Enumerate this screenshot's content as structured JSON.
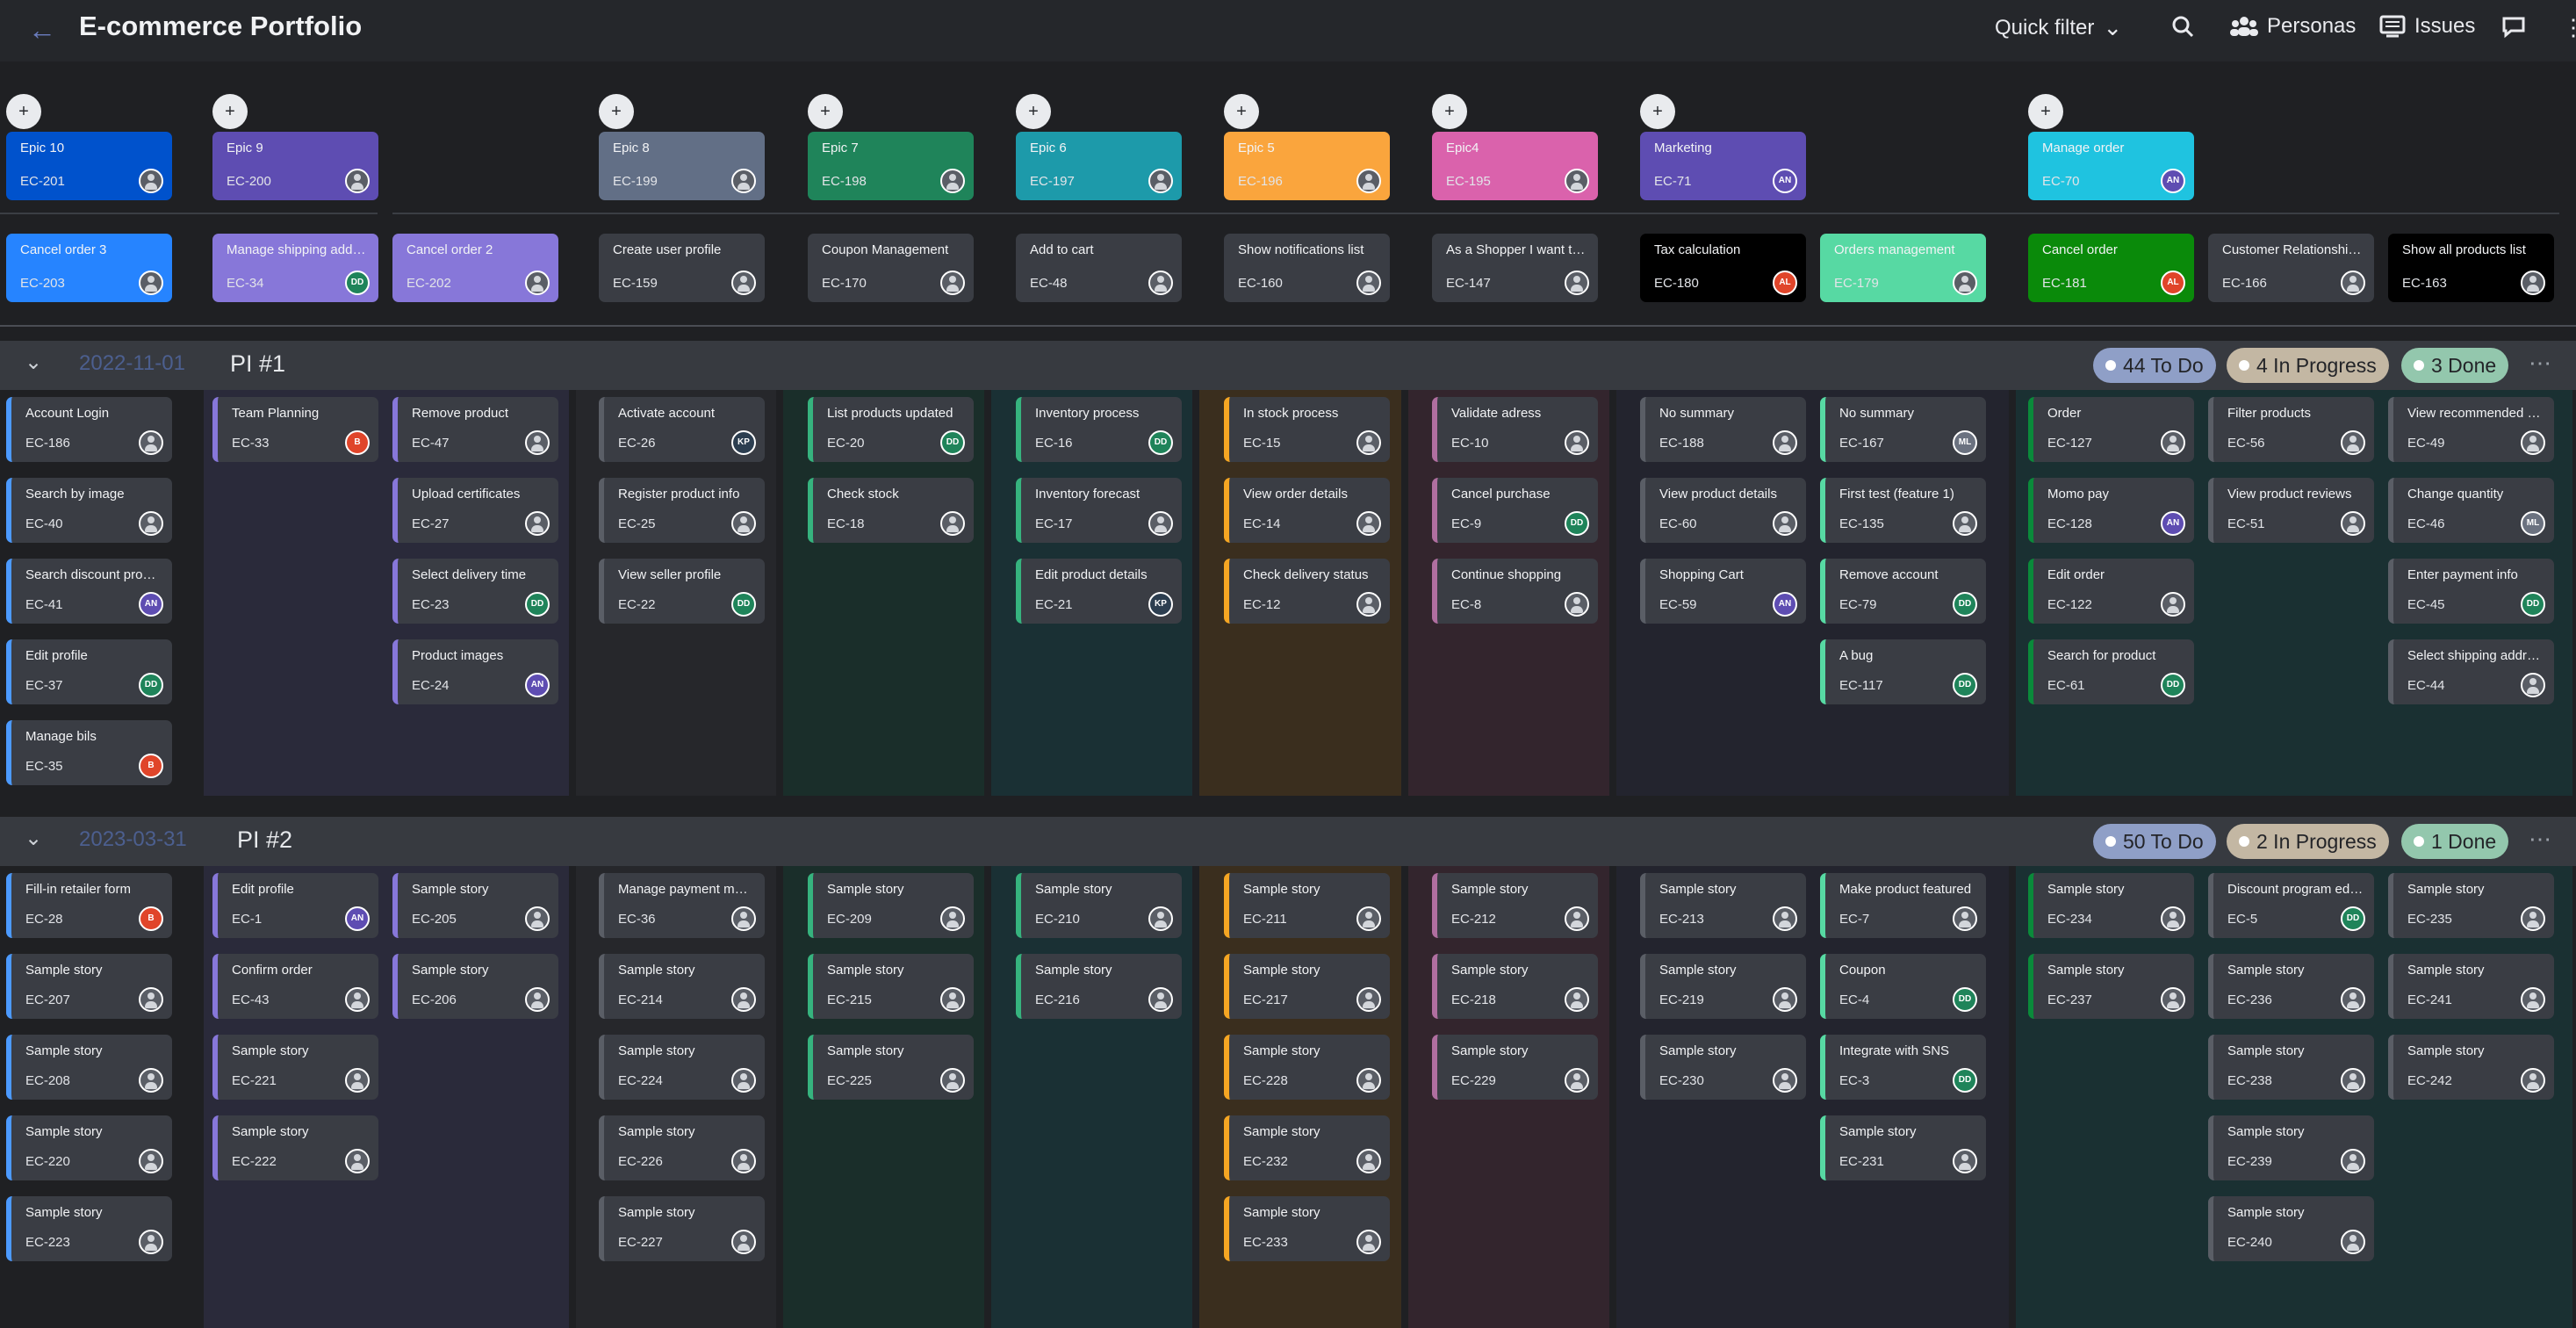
{
  "header": {
    "back_label": "←",
    "title": "E-commerce Portfolio",
    "quick_filter": "Quick filter",
    "personas": "Personas",
    "issues": "Issues"
  },
  "persona_icon": "+",
  "epics": [
    {
      "title": "Epic 10",
      "key": "EC-201",
      "color": "#0052cc"
    },
    {
      "title": "Epic 9",
      "key": "EC-200",
      "color": "#5e4db2"
    },
    {
      "title": "Epic 8",
      "key": "EC-199",
      "color": "#626f86"
    },
    {
      "title": "Epic 7",
      "key": "EC-198",
      "color": "#1f845a"
    },
    {
      "title": "Epic 6",
      "key": "EC-197",
      "color": "#1d9aaa"
    },
    {
      "title": "Epic 5",
      "key": "EC-196",
      "color": "#faa53d"
    },
    {
      "title": "Epic4",
      "key": "EC-195",
      "color": "#da62ac"
    },
    {
      "title": "Marketing",
      "key": "EC-71",
      "color": "#5e4db2",
      "avatar": "AN"
    },
    {
      "title": "Manage order",
      "key": "EC-70",
      "color": "#1fc3e0",
      "avatar": "AN"
    }
  ],
  "features": [
    {
      "title": "Cancel order 3",
      "key": "EC-203"
    },
    {
      "title": "Manage shipping addresses",
      "key": "EC-34",
      "avatar": "DD"
    },
    {
      "title": "Cancel order 2",
      "key": "EC-202"
    },
    {
      "title": "Create user profile",
      "key": "EC-159"
    },
    {
      "title": "Coupon Management",
      "key": "EC-170"
    },
    {
      "title": "Add to cart",
      "key": "EC-48"
    },
    {
      "title": "Show notifications list",
      "key": "EC-160"
    },
    {
      "title": "As a Shopper I want to Search for product",
      "key": "EC-147"
    },
    {
      "title": "Tax calculation",
      "key": "EC-180",
      "avatar": "AL"
    },
    {
      "title": "Orders management",
      "key": "EC-179"
    },
    {
      "title": "Cancel order",
      "key": "EC-181",
      "avatar": "AL"
    },
    {
      "title": "Customer Relationship management",
      "key": "EC-166"
    },
    {
      "title": "Show all products list",
      "key": "EC-163"
    }
  ],
  "pi1": {
    "date": "2022-11-01",
    "name": "PI #1",
    "todo": "44 To Do",
    "inprogress": "4 In Progress",
    "done": "3 Done",
    "stories": [
      {
        "title": "Account Login",
        "key": "EC-186"
      },
      {
        "title": "Search by image",
        "key": "EC-40"
      },
      {
        "title": "Search discount products",
        "key": "EC-41",
        "avatar": "AN"
      },
      {
        "title": "Edit profile",
        "key": "EC-37",
        "avatar": "DD"
      },
      {
        "title": "Manage bils",
        "key": "EC-35",
        "avatar": "B"
      },
      {
        "title": "Team Planning",
        "key": "EC-33",
        "avatar": "B"
      },
      {
        "title": "Remove product",
        "key": "EC-47"
      },
      {
        "title": "Upload certificates",
        "key": "EC-27"
      },
      {
        "title": "Select delivery time",
        "key": "EC-23",
        "avatar": "DD"
      },
      {
        "title": "Product images",
        "key": "EC-24",
        "avatar": "AN"
      },
      {
        "title": "Activate account",
        "key": "EC-26",
        "avatar": "KP"
      },
      {
        "title": "Register product info",
        "key": "EC-25"
      },
      {
        "title": "View seller profile",
        "key": "EC-22",
        "avatar": "DD"
      },
      {
        "title": "List products updated",
        "key": "EC-20",
        "avatar": "DD"
      },
      {
        "title": "Check stock",
        "key": "EC-18"
      },
      {
        "title": "Inventory process",
        "key": "EC-16",
        "avatar": "DD"
      },
      {
        "title": "Inventory forecast",
        "key": "EC-17"
      },
      {
        "title": "Edit product details",
        "key": "EC-21",
        "avatar": "KP"
      },
      {
        "title": "In stock process",
        "key": "EC-15"
      },
      {
        "title": "View order details",
        "key": "EC-14"
      },
      {
        "title": "Check delivery status",
        "key": "EC-12"
      },
      {
        "title": "Validate adress",
        "key": "EC-10"
      },
      {
        "title": "Cancel purchase",
        "key": "EC-9",
        "avatar": "DD"
      },
      {
        "title": "Continue shopping",
        "key": "EC-8"
      },
      {
        "title": "No summary",
        "key": "EC-188"
      },
      {
        "title": "View product details",
        "key": "EC-60"
      },
      {
        "title": "Shopping Cart",
        "key": "EC-59",
        "avatar": "AN"
      },
      {
        "title": "No summary",
        "key": "EC-167",
        "avatar": "ML"
      },
      {
        "title": "First test (feature 1)",
        "key": "EC-135"
      },
      {
        "title": "Remove account",
        "key": "EC-79",
        "avatar": "DD"
      },
      {
        "title": "A bug",
        "key": "EC-117",
        "avatar": "DD"
      },
      {
        "title": "Order",
        "key": "EC-127"
      },
      {
        "title": "Momo pay",
        "key": "EC-128",
        "avatar": "AN"
      },
      {
        "title": "Edit order",
        "key": "EC-122"
      },
      {
        "title": "Search for product",
        "key": "EC-61",
        "avatar": "DD"
      },
      {
        "title": "Filter products",
        "key": "EC-56"
      },
      {
        "title": "View product reviews",
        "key": "EC-51"
      },
      {
        "title": "View recommended products",
        "key": "EC-49"
      },
      {
        "title": "Change quantity",
        "key": "EC-46",
        "avatar": "ML"
      },
      {
        "title": "Enter payment info",
        "key": "EC-45",
        "avatar": "DD"
      },
      {
        "title": "Select shipping address",
        "key": "EC-44"
      }
    ]
  },
  "pi2": {
    "date": "2023-03-31",
    "name": "PI #2",
    "todo": "50 To Do",
    "inprogress": "2 In Progress",
    "done": "1 Done",
    "stories": [
      {
        "title": "Fill-in retailer form",
        "key": "EC-28",
        "avatar": "B"
      },
      {
        "title": "Sample story",
        "key": "EC-207"
      },
      {
        "title": "Sample story",
        "key": "EC-208"
      },
      {
        "title": "Sample story",
        "key": "EC-220"
      },
      {
        "title": "Sample story",
        "key": "EC-223"
      },
      {
        "title": "Edit profile",
        "key": "EC-1",
        "avatar": "AN"
      },
      {
        "title": "Confirm order",
        "key": "EC-43"
      },
      {
        "title": "Sample story",
        "key": "EC-221"
      },
      {
        "title": "Sample story",
        "key": "EC-222"
      },
      {
        "title": "Sample story",
        "key": "EC-205"
      },
      {
        "title": "Sample story",
        "key": "EC-206"
      },
      {
        "title": "Manage payment methods",
        "key": "EC-36"
      },
      {
        "title": "Sample story",
        "key": "EC-214"
      },
      {
        "title": "Sample story",
        "key": "EC-224"
      },
      {
        "title": "Sample story",
        "key": "EC-226"
      },
      {
        "title": "Sample story",
        "key": "EC-227"
      },
      {
        "title": "Sample story",
        "key": "EC-209"
      },
      {
        "title": "Sample story",
        "key": "EC-215"
      },
      {
        "title": "Sample story",
        "key": "EC-225"
      },
      {
        "title": "Sample story",
        "key": "EC-210"
      },
      {
        "title": "Sample story",
        "key": "EC-216"
      },
      {
        "title": "Sample story",
        "key": "EC-211"
      },
      {
        "title": "Sample story",
        "key": "EC-217"
      },
      {
        "title": "Sample story",
        "key": "EC-228"
      },
      {
        "title": "Sample story",
        "key": "EC-232"
      },
      {
        "title": "Sample story",
        "key": "EC-233"
      },
      {
        "title": "Sample story",
        "key": "EC-212"
      },
      {
        "title": "Sample story",
        "key": "EC-218"
      },
      {
        "title": "Sample story",
        "key": "EC-229"
      },
      {
        "title": "Sample story",
        "key": "EC-213"
      },
      {
        "title": "Sample story",
        "key": "EC-219"
      },
      {
        "title": "Sample story",
        "key": "EC-230"
      },
      {
        "title": "Make product featured",
        "key": "EC-7"
      },
      {
        "title": "Coupon",
        "key": "EC-4",
        "avatar": "DD"
      },
      {
        "title": "Integrate with SNS",
        "key": "EC-3",
        "avatar": "DD"
      },
      {
        "title": "Sample story",
        "key": "EC-231"
      },
      {
        "title": "Sample story",
        "key": "EC-234"
      },
      {
        "title": "Sample story",
        "key": "EC-237"
      },
      {
        "title": "Discount program edited",
        "key": "EC-5",
        "avatar": "DD"
      },
      {
        "title": "Sample story",
        "key": "EC-236"
      },
      {
        "title": "Sample story",
        "key": "EC-238"
      },
      {
        "title": "Sample story",
        "key": "EC-239"
      },
      {
        "title": "Sample story",
        "key": "EC-240"
      },
      {
        "title": "Sample story",
        "key": "EC-235"
      },
      {
        "title": "Sample story",
        "key": "EC-241"
      },
      {
        "title": "Sample story",
        "key": "EC-242"
      }
    ]
  },
  "colors": {
    "todo_pill": "#8f9fc7",
    "inprogress_pill": "#c3b7a3",
    "done_pill": "#93c7ad",
    "avatar_AN": "#5e4db2",
    "avatar_DD": "#1f845a",
    "avatar_B": "#e0452a",
    "avatar_KP": "#2c3e50",
    "avatar_ML": "#6b7280",
    "avatar_AL": "#e0452a"
  }
}
